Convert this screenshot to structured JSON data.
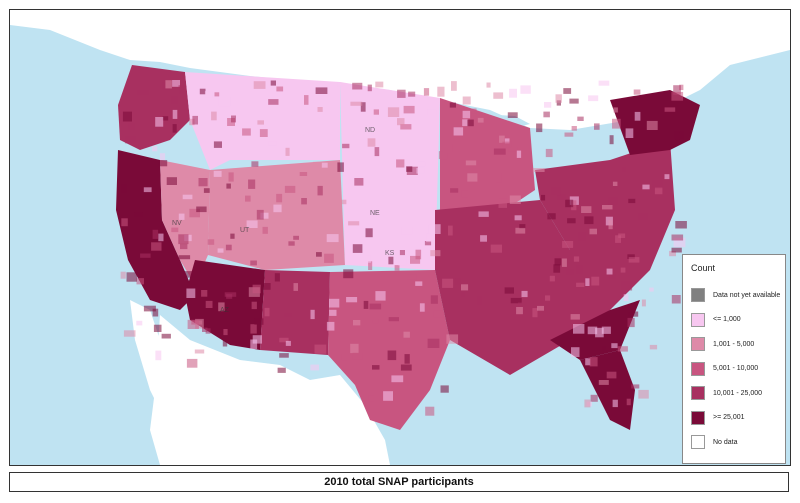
{
  "map": {
    "legend_title": "Count",
    "legend": [
      {
        "label": "Data not yet available",
        "color": "#808080",
        "icon": "gray-swatch"
      },
      {
        "label": "<= 1,000",
        "color": "#f7c7f0"
      },
      {
        "label": "1,001 - 5,000",
        "color": "#de8aa8"
      },
      {
        "label": "5,001 - 10,000",
        "color": "#c85580"
      },
      {
        "label": "10,001 - 25,000",
        "color": "#a83060"
      },
      {
        "label": ">= 25,001",
        "color": "#7a0a38"
      },
      {
        "label": "No data",
        "color": "#ffffff"
      }
    ],
    "caption": "2010 total SNAP participants",
    "colors": {
      "water": "#bfe3f2",
      "land_other": "#ffffff",
      "border": "#5a4a55"
    }
  }
}
